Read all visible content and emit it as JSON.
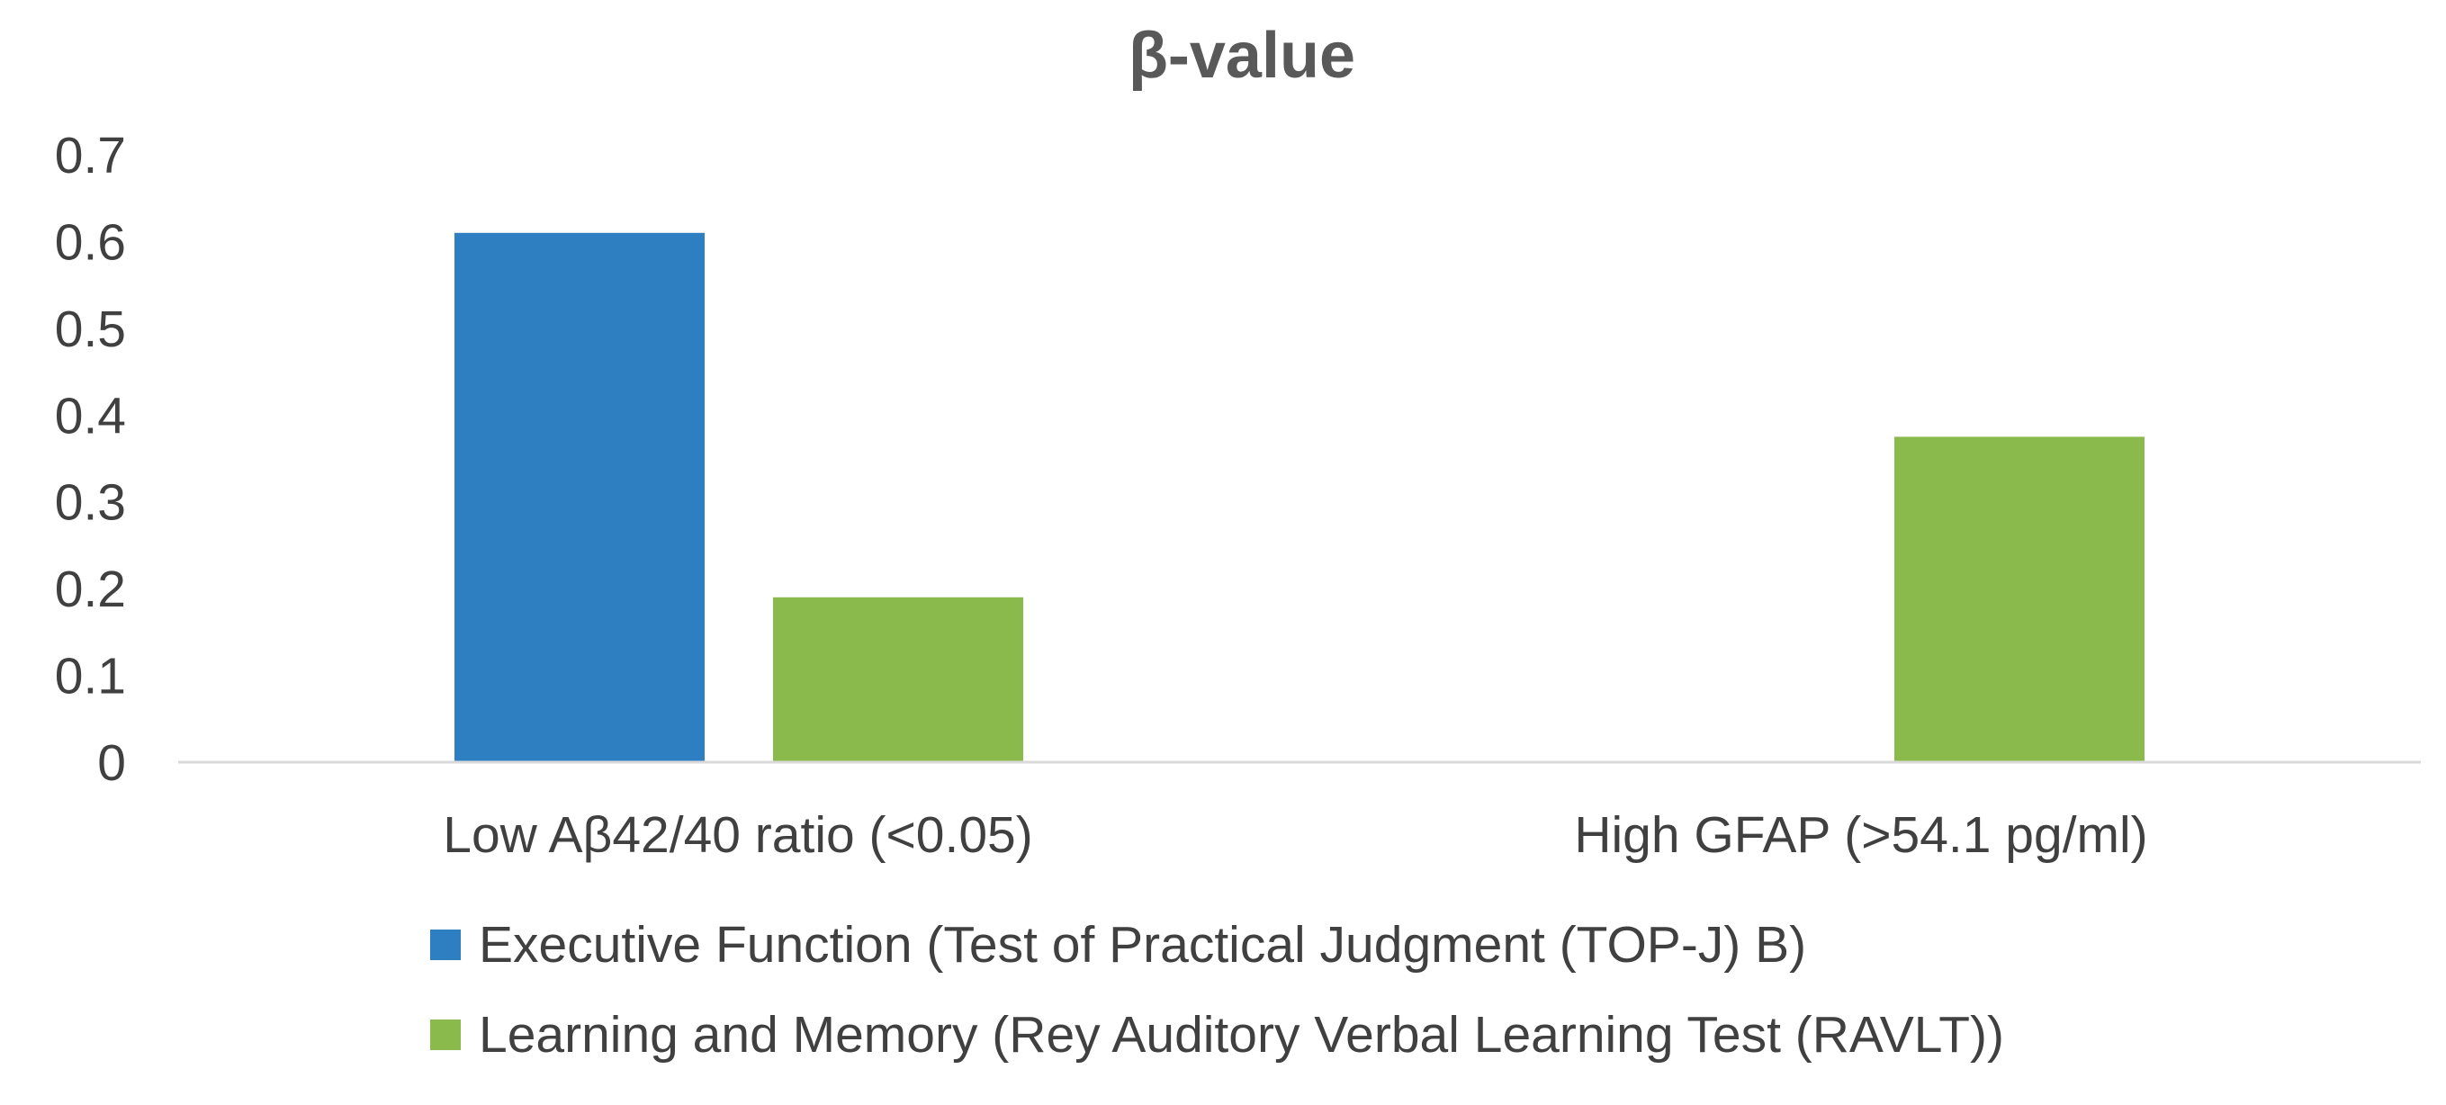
{
  "chart_data": {
    "type": "bar",
    "title": "β-value",
    "xlabel": "",
    "ylabel": "",
    "categories": [
      "Low Aβ42/40 ratio (<0.05)",
      "High GFAP (>54.1 pg/ml)"
    ],
    "series": [
      {
        "name": "Executive Function (Test of Practical Judgment (TOP-J) B)",
        "color": "#2e7ec2",
        "values": [
          0.61,
          null
        ]
      },
      {
        "name": "Learning and Memory (Rey Auditory Verbal Learning Test (RAVLT))",
        "color": "#8bba4c",
        "values": [
          0.19,
          0.375
        ]
      }
    ],
    "ylim": [
      0,
      0.7
    ],
    "yticks": [
      0,
      0.1,
      0.2,
      0.3,
      0.4,
      0.5,
      0.6,
      0.7
    ],
    "ytick_labels": [
      "0",
      "0.1",
      "0.2",
      "0.3",
      "0.4",
      "0.5",
      "0.6",
      "0.7"
    ],
    "grid": false,
    "legend_position": "bottom"
  }
}
